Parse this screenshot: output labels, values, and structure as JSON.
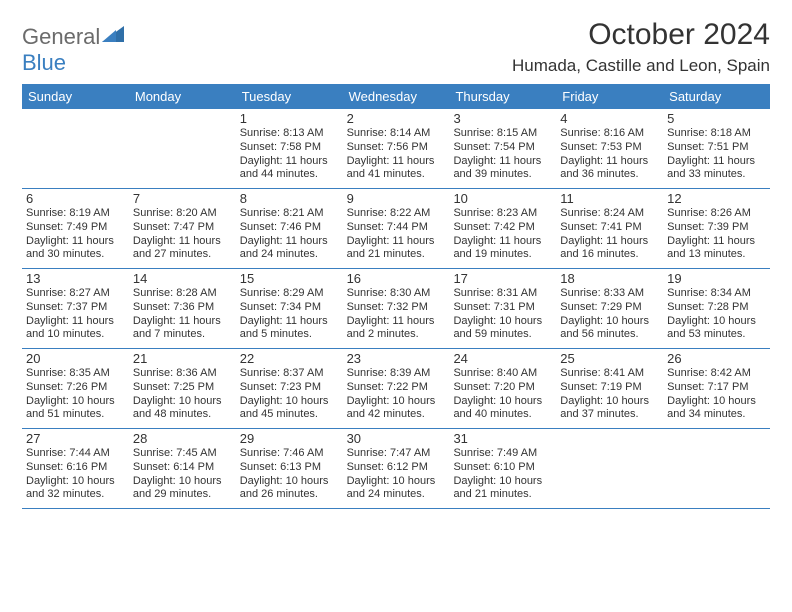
{
  "logo": {
    "word1": "General",
    "word2": "Blue"
  },
  "title": "October 2024",
  "location": "Humada, Castille and Leon, Spain",
  "colors": {
    "header_bg": "#3a7fc0",
    "header_text": "#ffffff",
    "border": "#3a7fc0",
    "text": "#333333",
    "logo_gray": "#6b6b6b",
    "logo_blue": "#3a7fc0",
    "bg": "#ffffff"
  },
  "dayNames": [
    "Sunday",
    "Monday",
    "Tuesday",
    "Wednesday",
    "Thursday",
    "Friday",
    "Saturday"
  ],
  "weeks": [
    [
      {
        "blank": true
      },
      {
        "blank": true
      },
      {
        "n": "1",
        "rise": "Sunrise: 8:13 AM",
        "set": "Sunset: 7:58 PM",
        "dl1": "Daylight: 11 hours",
        "dl2": "and 44 minutes."
      },
      {
        "n": "2",
        "rise": "Sunrise: 8:14 AM",
        "set": "Sunset: 7:56 PM",
        "dl1": "Daylight: 11 hours",
        "dl2": "and 41 minutes."
      },
      {
        "n": "3",
        "rise": "Sunrise: 8:15 AM",
        "set": "Sunset: 7:54 PM",
        "dl1": "Daylight: 11 hours",
        "dl2": "and 39 minutes."
      },
      {
        "n": "4",
        "rise": "Sunrise: 8:16 AM",
        "set": "Sunset: 7:53 PM",
        "dl1": "Daylight: 11 hours",
        "dl2": "and 36 minutes."
      },
      {
        "n": "5",
        "rise": "Sunrise: 8:18 AM",
        "set": "Sunset: 7:51 PM",
        "dl1": "Daylight: 11 hours",
        "dl2": "and 33 minutes."
      }
    ],
    [
      {
        "n": "6",
        "rise": "Sunrise: 8:19 AM",
        "set": "Sunset: 7:49 PM",
        "dl1": "Daylight: 11 hours",
        "dl2": "and 30 minutes."
      },
      {
        "n": "7",
        "rise": "Sunrise: 8:20 AM",
        "set": "Sunset: 7:47 PM",
        "dl1": "Daylight: 11 hours",
        "dl2": "and 27 minutes."
      },
      {
        "n": "8",
        "rise": "Sunrise: 8:21 AM",
        "set": "Sunset: 7:46 PM",
        "dl1": "Daylight: 11 hours",
        "dl2": "and 24 minutes."
      },
      {
        "n": "9",
        "rise": "Sunrise: 8:22 AM",
        "set": "Sunset: 7:44 PM",
        "dl1": "Daylight: 11 hours",
        "dl2": "and 21 minutes."
      },
      {
        "n": "10",
        "rise": "Sunrise: 8:23 AM",
        "set": "Sunset: 7:42 PM",
        "dl1": "Daylight: 11 hours",
        "dl2": "and 19 minutes."
      },
      {
        "n": "11",
        "rise": "Sunrise: 8:24 AM",
        "set": "Sunset: 7:41 PM",
        "dl1": "Daylight: 11 hours",
        "dl2": "and 16 minutes."
      },
      {
        "n": "12",
        "rise": "Sunrise: 8:26 AM",
        "set": "Sunset: 7:39 PM",
        "dl1": "Daylight: 11 hours",
        "dl2": "and 13 minutes."
      }
    ],
    [
      {
        "n": "13",
        "rise": "Sunrise: 8:27 AM",
        "set": "Sunset: 7:37 PM",
        "dl1": "Daylight: 11 hours",
        "dl2": "and 10 minutes."
      },
      {
        "n": "14",
        "rise": "Sunrise: 8:28 AM",
        "set": "Sunset: 7:36 PM",
        "dl1": "Daylight: 11 hours",
        "dl2": "and 7 minutes."
      },
      {
        "n": "15",
        "rise": "Sunrise: 8:29 AM",
        "set": "Sunset: 7:34 PM",
        "dl1": "Daylight: 11 hours",
        "dl2": "and 5 minutes."
      },
      {
        "n": "16",
        "rise": "Sunrise: 8:30 AM",
        "set": "Sunset: 7:32 PM",
        "dl1": "Daylight: 11 hours",
        "dl2": "and 2 minutes."
      },
      {
        "n": "17",
        "rise": "Sunrise: 8:31 AM",
        "set": "Sunset: 7:31 PM",
        "dl1": "Daylight: 10 hours",
        "dl2": "and 59 minutes."
      },
      {
        "n": "18",
        "rise": "Sunrise: 8:33 AM",
        "set": "Sunset: 7:29 PM",
        "dl1": "Daylight: 10 hours",
        "dl2": "and 56 minutes."
      },
      {
        "n": "19",
        "rise": "Sunrise: 8:34 AM",
        "set": "Sunset: 7:28 PM",
        "dl1": "Daylight: 10 hours",
        "dl2": "and 53 minutes."
      }
    ],
    [
      {
        "n": "20",
        "rise": "Sunrise: 8:35 AM",
        "set": "Sunset: 7:26 PM",
        "dl1": "Daylight: 10 hours",
        "dl2": "and 51 minutes."
      },
      {
        "n": "21",
        "rise": "Sunrise: 8:36 AM",
        "set": "Sunset: 7:25 PM",
        "dl1": "Daylight: 10 hours",
        "dl2": "and 48 minutes."
      },
      {
        "n": "22",
        "rise": "Sunrise: 8:37 AM",
        "set": "Sunset: 7:23 PM",
        "dl1": "Daylight: 10 hours",
        "dl2": "and 45 minutes."
      },
      {
        "n": "23",
        "rise": "Sunrise: 8:39 AM",
        "set": "Sunset: 7:22 PM",
        "dl1": "Daylight: 10 hours",
        "dl2": "and 42 minutes."
      },
      {
        "n": "24",
        "rise": "Sunrise: 8:40 AM",
        "set": "Sunset: 7:20 PM",
        "dl1": "Daylight: 10 hours",
        "dl2": "and 40 minutes."
      },
      {
        "n": "25",
        "rise": "Sunrise: 8:41 AM",
        "set": "Sunset: 7:19 PM",
        "dl1": "Daylight: 10 hours",
        "dl2": "and 37 minutes."
      },
      {
        "n": "26",
        "rise": "Sunrise: 8:42 AM",
        "set": "Sunset: 7:17 PM",
        "dl1": "Daylight: 10 hours",
        "dl2": "and 34 minutes."
      }
    ],
    [
      {
        "n": "27",
        "rise": "Sunrise: 7:44 AM",
        "set": "Sunset: 6:16 PM",
        "dl1": "Daylight: 10 hours",
        "dl2": "and 32 minutes."
      },
      {
        "n": "28",
        "rise": "Sunrise: 7:45 AM",
        "set": "Sunset: 6:14 PM",
        "dl1": "Daylight: 10 hours",
        "dl2": "and 29 minutes."
      },
      {
        "n": "29",
        "rise": "Sunrise: 7:46 AM",
        "set": "Sunset: 6:13 PM",
        "dl1": "Daylight: 10 hours",
        "dl2": "and 26 minutes."
      },
      {
        "n": "30",
        "rise": "Sunrise: 7:47 AM",
        "set": "Sunset: 6:12 PM",
        "dl1": "Daylight: 10 hours",
        "dl2": "and 24 minutes."
      },
      {
        "n": "31",
        "rise": "Sunrise: 7:49 AM",
        "set": "Sunset: 6:10 PM",
        "dl1": "Daylight: 10 hours",
        "dl2": "and 21 minutes."
      },
      {
        "blank": true
      },
      {
        "blank": true
      }
    ]
  ]
}
